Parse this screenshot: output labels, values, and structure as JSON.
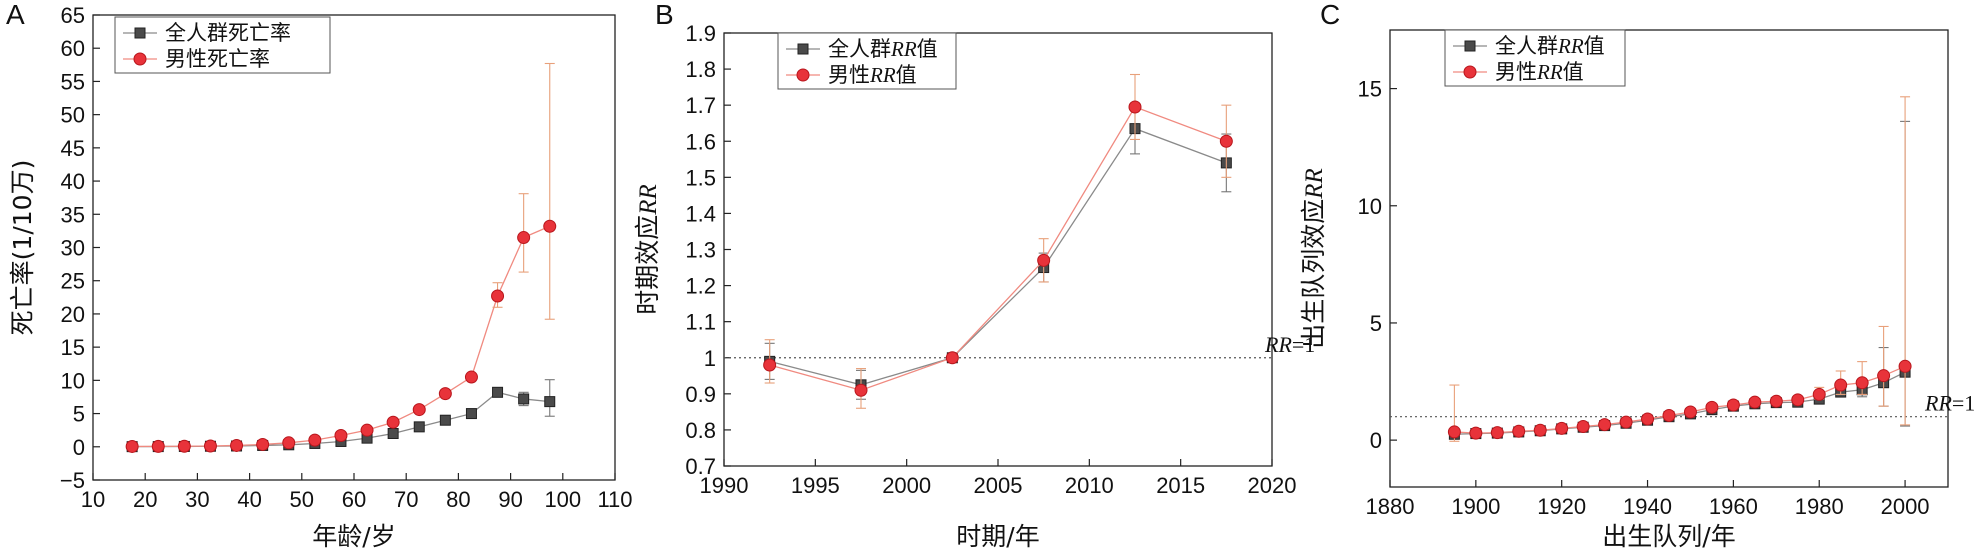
{
  "figure": {
    "panels": [
      "A",
      "B",
      "C"
    ]
  },
  "colors": {
    "total": "#4a4a4a",
    "male": "#e8333a",
    "male_line": "#f08a80",
    "errorbar": "#e8a07a"
  },
  "chart_data": [
    {
      "panel": "A",
      "type": "line",
      "xlabel": "年龄/岁",
      "ylabel": "死亡率(1/10万)",
      "xlim": [
        10,
        110
      ],
      "ylim": [
        -5,
        65
      ],
      "xticks": [
        10,
        20,
        30,
        40,
        50,
        60,
        70,
        80,
        90,
        100,
        110
      ],
      "yticks": [
        -5,
        0,
        5,
        10,
        15,
        20,
        25,
        30,
        35,
        40,
        45,
        50,
        55,
        60,
        65
      ],
      "legend": "top-left",
      "x": [
        17.5,
        22.5,
        27.5,
        32.5,
        37.5,
        42.5,
        47.5,
        52.5,
        57.5,
        62.5,
        67.5,
        72.5,
        77.5,
        82.5,
        87.5,
        92.5,
        97.5
      ],
      "series": [
        {
          "name": "全人群死亡率",
          "marker": "square",
          "values": [
            0.02,
            0.03,
            0.05,
            0.08,
            0.12,
            0.2,
            0.3,
            0.5,
            0.8,
            1.3,
            2.0,
            3.0,
            4.0,
            5.0,
            8.2,
            7.2,
            6.8
          ],
          "err_low": [
            0,
            0,
            0,
            0,
            0,
            0,
            0,
            0,
            0,
            0,
            0,
            0,
            0,
            0,
            0.5,
            1.0,
            2.2
          ],
          "err_high": [
            0,
            0,
            0,
            0,
            0,
            0,
            0,
            0,
            0,
            0,
            0,
            0,
            0,
            0,
            0.5,
            1.0,
            3.3
          ]
        },
        {
          "name": "男性死亡率",
          "marker": "circle",
          "values": [
            0.05,
            0.06,
            0.08,
            0.12,
            0.2,
            0.35,
            0.6,
            1.0,
            1.7,
            2.5,
            3.7,
            5.6,
            8.0,
            10.5,
            22.7,
            31.5,
            33.2
          ],
          "err_low": [
            0,
            0,
            0,
            0,
            0,
            0,
            0,
            0,
            0,
            0,
            0,
            0,
            0,
            0,
            1.7,
            5.2,
            14.0
          ],
          "err_high": [
            0,
            0,
            0,
            0,
            0,
            0,
            0,
            0,
            0,
            0,
            0,
            0,
            0,
            0,
            2.0,
            6.6,
            24.5
          ]
        }
      ]
    },
    {
      "panel": "B",
      "type": "line",
      "xlabel": "时期/年",
      "ylabel": "时期效应RR",
      "xlim": [
        1990,
        2020
      ],
      "ylim": [
        0.7,
        1.9
      ],
      "xticks": [
        1990,
        1995,
        2000,
        2005,
        2010,
        2015,
        2020
      ],
      "yticks": [
        0.7,
        0.8,
        0.9,
        1.0,
        1.1,
        1.2,
        1.3,
        1.4,
        1.5,
        1.6,
        1.7,
        1.8,
        1.9
      ],
      "legend": "top-left",
      "reference": {
        "y": 1.0,
        "label": "RR=1"
      },
      "x": [
        1992.5,
        1997.5,
        2002.5,
        2007.5,
        2012.5,
        2017.5
      ],
      "series": [
        {
          "name": "全人群RR值",
          "marker": "square",
          "values": [
            0.99,
            0.925,
            1.0,
            1.25,
            1.635,
            1.54
          ],
          "err_low": [
            0.05,
            0.04,
            0,
            0.04,
            0.07,
            0.08
          ],
          "err_high": [
            0.05,
            0.04,
            0,
            0.04,
            0.07,
            0.08
          ]
        },
        {
          "name": "男性RR值",
          "marker": "circle",
          "values": [
            0.98,
            0.91,
            1.0,
            1.27,
            1.695,
            1.6
          ],
          "err_low": [
            0.05,
            0.05,
            0,
            0.06,
            0.09,
            0.1
          ],
          "err_high": [
            0.07,
            0.06,
            0,
            0.06,
            0.09,
            0.1
          ]
        }
      ]
    },
    {
      "panel": "C",
      "type": "line",
      "xlabel": "出生队列/年",
      "ylabel": "出生队列效应RR",
      "xlim": [
        1880,
        2010
      ],
      "ylim": [
        -2,
        17.5
      ],
      "xticks": [
        1880,
        1900,
        1920,
        1940,
        1960,
        1980,
        2000
      ],
      "yticks": [
        0,
        5,
        10,
        15
      ],
      "legend": "top-left",
      "reference": {
        "y": 1.0,
        "label": "RR=1"
      },
      "x": [
        1895,
        1900,
        1905,
        1910,
        1915,
        1920,
        1925,
        1930,
        1935,
        1940,
        1945,
        1950,
        1955,
        1960,
        1965,
        1970,
        1975,
        1980,
        1985,
        1990,
        1995,
        2000
      ],
      "series": [
        {
          "name": "全人群RR值",
          "marker": "square",
          "values": [
            0.25,
            0.28,
            0.3,
            0.35,
            0.4,
            0.48,
            0.55,
            0.62,
            0.72,
            0.85,
            1.0,
            1.12,
            1.3,
            1.45,
            1.55,
            1.6,
            1.62,
            1.75,
            2.05,
            2.15,
            2.45,
            2.9
          ],
          "err_low": [
            0,
            0,
            0,
            0,
            0,
            0,
            0,
            0,
            0,
            0,
            0,
            0,
            0,
            0,
            0.05,
            0.05,
            0.05,
            0.1,
            0.15,
            0.3,
            1.0,
            2.3
          ],
          "err_high": [
            0,
            0,
            0,
            0,
            0,
            0,
            0,
            0,
            0,
            0,
            0,
            0,
            0,
            0,
            0.05,
            0.05,
            0.05,
            0.1,
            0.15,
            0.4,
            1.5,
            10.7
          ]
        },
        {
          "name": "男性RR值",
          "marker": "circle",
          "values": [
            0.35,
            0.3,
            0.32,
            0.38,
            0.42,
            0.5,
            0.58,
            0.66,
            0.77,
            0.9,
            1.05,
            1.2,
            1.4,
            1.5,
            1.62,
            1.66,
            1.72,
            1.95,
            2.35,
            2.45,
            2.75,
            3.15
          ],
          "err_low": [
            0.4,
            0,
            0,
            0,
            0,
            0,
            0,
            0,
            0,
            0,
            0,
            0,
            0,
            0,
            0.1,
            0.1,
            0.1,
            0.2,
            0.4,
            0.5,
            1.3,
            2.5
          ],
          "err_high": [
            2.0,
            0,
            0,
            0,
            0,
            0,
            0,
            0,
            0,
            0,
            0,
            0,
            0,
            0,
            0.1,
            0.1,
            0.1,
            0.3,
            0.6,
            0.9,
            2.1,
            11.5
          ]
        }
      ]
    }
  ]
}
